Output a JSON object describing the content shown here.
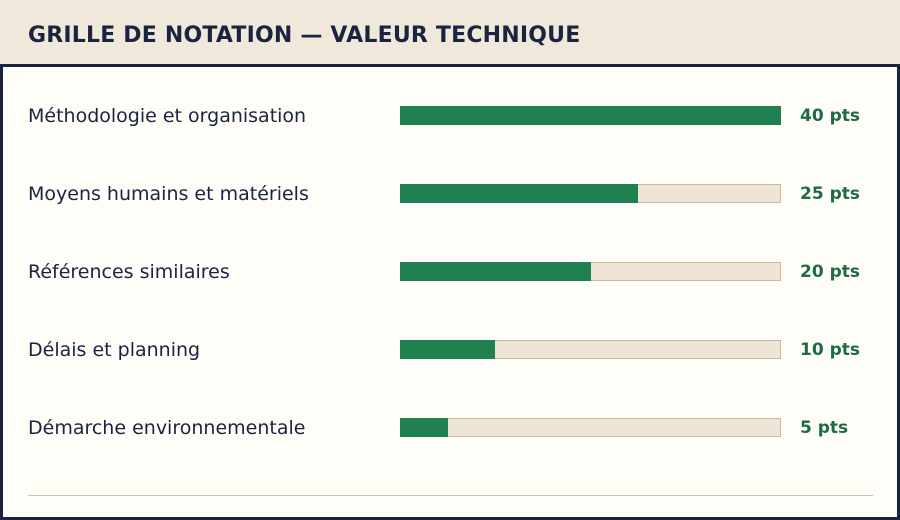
{
  "header": {
    "title": "GRILLE DE NOTATION — VALEUR TECHNIQUE"
  },
  "colors": {
    "bar_fill": "#218052",
    "bar_track": "#efe5d6",
    "value_text": "#1f6b45",
    "title_text": "#1a2440"
  },
  "chart_data": {
    "type": "bar",
    "orientation": "horizontal",
    "title": "GRILLE DE NOTATION — VALEUR TECHNIQUE",
    "xlim": [
      0,
      40
    ],
    "grid": false,
    "categories": [
      "Méthodologie et organisation",
      "Moyens humains et matériels",
      "Références similaires",
      "Délais et planning",
      "Démarche environnementale"
    ],
    "values": [
      40,
      25,
      20,
      10,
      5
    ],
    "value_labels": [
      "40 pts",
      "25 pts",
      "20 pts",
      "10 pts",
      "5 pts"
    ]
  }
}
